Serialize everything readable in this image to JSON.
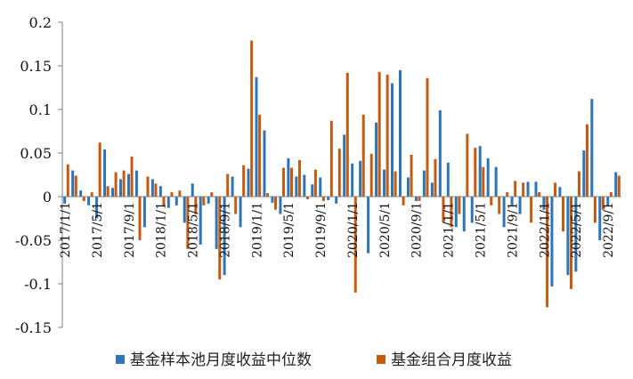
{
  "chart_data": {
    "type": "bar",
    "ylim": [
      -0.15,
      0.2
    ],
    "yticks": [
      "0.2",
      "0.15",
      "0.1",
      "0.05",
      "0",
      "-0.05",
      "-0.1",
      "-0.15"
    ],
    "ytick_values": [
      0.2,
      0.15,
      0.1,
      0.05,
      0,
      -0.05,
      -0.1,
      -0.15
    ],
    "xtick_labels": [
      "2017/1/1",
      "2017/5/1",
      "2017/9/1",
      "2018/1/1",
      "2018/5/1",
      "2018/9/1",
      "2019/1/1",
      "2019/5/1",
      "2019/9/1",
      "2020/1/1",
      "2020/5/1",
      "2020/9/1",
      "2021/1/1",
      "2021/5/1",
      "2021/9/1",
      "2022/1/1",
      "2022/5/1",
      "2022/9/1"
    ],
    "xtick_index": [
      0,
      4,
      8,
      12,
      16,
      20,
      24,
      28,
      32,
      36,
      40,
      44,
      48,
      52,
      56,
      60,
      64,
      68
    ],
    "categories": [
      "2017/1",
      "2017/2",
      "2017/3",
      "2017/4",
      "2017/5",
      "2017/6",
      "2017/7",
      "2017/8",
      "2017/9",
      "2017/10",
      "2017/11",
      "2017/12",
      "2018/1",
      "2018/2",
      "2018/3",
      "2018/4",
      "2018/5",
      "2018/6",
      "2018/7",
      "2018/8",
      "2018/9",
      "2018/10",
      "2018/11",
      "2018/12",
      "2019/1",
      "2019/2",
      "2019/3",
      "2019/4",
      "2019/5",
      "2019/6",
      "2019/7",
      "2019/8",
      "2019/9",
      "2019/10",
      "2019/11",
      "2019/12",
      "2020/1",
      "2020/2",
      "2020/3",
      "2020/4",
      "2020/5",
      "2020/6",
      "2020/7",
      "2020/8",
      "2020/9",
      "2020/10",
      "2020/11",
      "2020/12",
      "2021/1",
      "2021/2",
      "2021/3",
      "2021/4",
      "2021/5",
      "2021/6",
      "2021/7",
      "2021/8",
      "2021/9",
      "2021/10",
      "2021/11",
      "2021/12",
      "2022/1",
      "2022/2",
      "2022/3",
      "2022/4",
      "2022/5",
      "2022/6",
      "2022/7",
      "2022/8",
      "2022/9",
      "2022/10"
    ],
    "series": [
      {
        "name": "基金样本池月度收益中位数",
        "color": "#2E75B6",
        "values": [
          -0.008,
          0.03,
          0.007,
          -0.01,
          -0.025,
          0.054,
          0.01,
          0.02,
          0.026,
          0.03,
          -0.035,
          0.02,
          0.012,
          -0.013,
          -0.01,
          -0.03,
          0.015,
          -0.055,
          -0.008,
          -0.06,
          -0.09,
          0.023,
          -0.035,
          0.032,
          0.137,
          0.076,
          -0.007,
          -0.02,
          0.044,
          0.023,
          0.025,
          0.014,
          0.022,
          -0.004,
          -0.008,
          0.071,
          0.038,
          0.041,
          -0.065,
          0.085,
          0.031,
          0.13,
          0.145,
          0.022,
          -0.005,
          0.03,
          0.016,
          0.099,
          0.039,
          -0.035,
          -0.04,
          -0.03,
          0.058,
          0.044,
          0.034,
          -0.035,
          -0.01,
          -0.02,
          0.017,
          0.017,
          -0.015,
          -0.103,
          0.011,
          -0.09,
          -0.086,
          0.053,
          0.112,
          -0.05,
          -0.01,
          0.028
        ]
      },
      {
        "name": "基金组合月度收益",
        "color": "#C55A11",
        "values": [
          0.037,
          0.024,
          -0.005,
          0.005,
          0.062,
          0.012,
          0.028,
          0.03,
          0.046,
          -0.05,
          0.023,
          0.015,
          -0.01,
          0.005,
          0.007,
          -0.06,
          -0.02,
          -0.01,
          0.005,
          -0.095,
          0.026,
          -0.02,
          0.036,
          0.179,
          0.094,
          0.004,
          -0.015,
          0.033,
          0.033,
          0.042,
          -0.003,
          0.031,
          -0.005,
          0.087,
          0.055,
          0.142,
          -0.11,
          0.094,
          0.049,
          0.143,
          0.14,
          0.029,
          -0.01,
          0.048,
          -0.005,
          0.136,
          0.043,
          -0.03,
          -0.035,
          -0.02,
          0.072,
          0.056,
          0.034,
          -0.01,
          -0.02,
          0.005,
          0.018,
          0.016,
          -0.03,
          0.005,
          -0.127,
          0.016,
          -0.04,
          -0.106,
          0.029,
          0.083,
          -0.03,
          -0.015,
          0.005,
          0.024
        ]
      }
    ],
    "legend_placement": "bottom",
    "grid": false
  }
}
